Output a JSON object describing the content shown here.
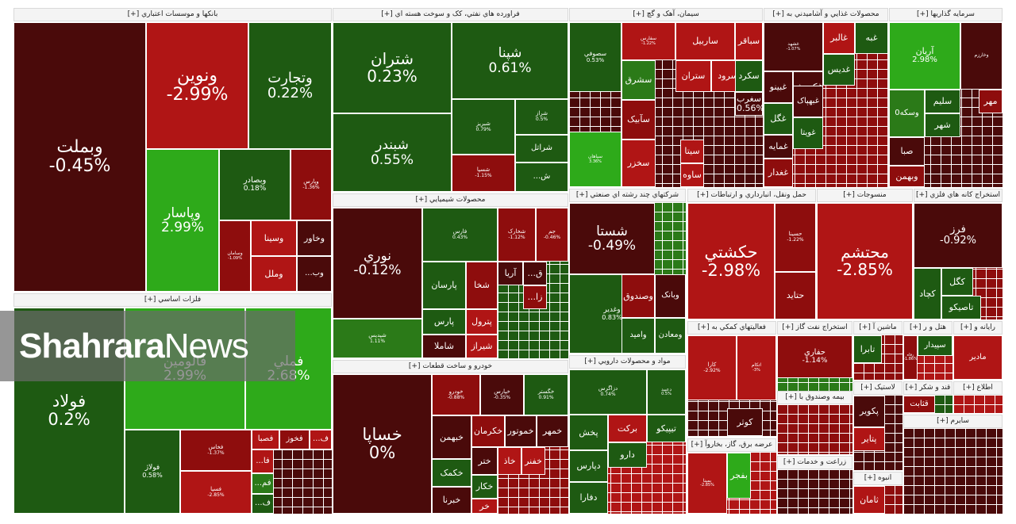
{
  "palette": {
    "dark": "#4a0a0a",
    "red": "#8e0d0d",
    "bright_red": "#b01515",
    "dark_green": "#1e5a12",
    "green": "#2b7a18",
    "bright_green": "#2eaa1a"
  },
  "watermark": {
    "bold": "Shahrara",
    "light": "News"
  },
  "sections": [
    {
      "header": "بانکها و موسسات اعتباري [+]",
      "tiles": [
        {
          "sym": "وبملت",
          "pct": "-0.45%",
          "c": "dark"
        },
        {
          "sym": "ونوين",
          "pct": "-2.99%",
          "c": "bright_red"
        },
        {
          "sym": "وتجارت",
          "pct": "0.22%",
          "c": "dark_green"
        },
        {
          "sym": "وپاسار",
          "pct": "2.99%",
          "c": "bright_green"
        },
        {
          "sym": "وبصادر",
          "pct": "0.18%",
          "c": "dark_green"
        },
        {
          "sym": "وپارس",
          "pct": "-1.36%",
          "c": "red"
        },
        {
          "sym": "وسينا",
          "c": "bright_red"
        },
        {
          "sym": "وملل",
          "c": "bright_red"
        },
        {
          "sym": "وخاور",
          "c": "dark"
        },
        {
          "sym": "وب...",
          "c": "dark"
        },
        {
          "sym": "وسامان",
          "pct": "-1.09%",
          "c": "red"
        }
      ]
    },
    {
      "header": "فلزات اساسي [+]",
      "tiles": [
        {
          "sym": "فولاد",
          "pct": "0.2%",
          "c": "dark_green"
        },
        {
          "sym": "فالومين",
          "pct": "2.99%",
          "c": "bright_green"
        },
        {
          "sym": "فملي",
          "pct": "2.68%",
          "c": "bright_green"
        },
        {
          "sym": "فولاژ",
          "pct": "0.58%",
          "c": "dark_green"
        },
        {
          "sym": "فخاس",
          "pct": "-1.37%",
          "c": "red"
        },
        {
          "sym": "فسپا",
          "pct": "-2.85%",
          "c": "bright_red"
        },
        {
          "sym": "فصبا",
          "c": "bright_red"
        },
        {
          "sym": "فخوز",
          "c": "red"
        },
        {
          "sym": "ف...",
          "c": "bright_red"
        },
        {
          "sym": "فا...",
          "c": "bright_red"
        },
        {
          "sym": "فم...",
          "c": "green"
        },
        {
          "sym": "ف...",
          "c": "dark_green"
        }
      ]
    },
    {
      "header": "فراورده هاي نفتي، کک و سوخت هسته اي [+]",
      "tiles": [
        {
          "sym": "شتران",
          "pct": "0.23%",
          "c": "dark_green"
        },
        {
          "sym": "شپنا",
          "pct": "0.61%",
          "c": "dark_green"
        },
        {
          "sym": "شبندر",
          "pct": "0.55%",
          "c": "dark_green"
        },
        {
          "sym": "شبريز",
          "pct": "0.79%",
          "c": "dark_green"
        },
        {
          "sym": "شراز",
          "pct": "0.5%",
          "c": "dark_green"
        },
        {
          "sym": "شراتل",
          "c": "dark_green"
        },
        {
          "sym": "شسپا",
          "pct": "-1.15%",
          "c": "red"
        },
        {
          "sym": "ش...",
          "c": "dark_green"
        }
      ]
    },
    {
      "header": "محصولات شيميايي [+]",
      "tiles": [
        {
          "sym": "نوري",
          "pct": "-0.12%",
          "c": "dark"
        },
        {
          "sym": "فارس",
          "pct": "0.43%",
          "c": "dark_green"
        },
        {
          "sym": "شخارک",
          "pct": "-1.12%",
          "c": "red"
        },
        {
          "sym": "پارسان",
          "c": "dark_green"
        },
        {
          "sym": "شخا",
          "c": "red"
        },
        {
          "sym": "آريا",
          "c": "dark"
        },
        {
          "sym": "شپديس",
          "pct": "1.11%",
          "c": "green"
        },
        {
          "sym": "پارس",
          "c": "dark_green"
        },
        {
          "sym": "پترول",
          "c": "bright_red"
        },
        {
          "sym": "شاملا",
          "c": "dark"
        },
        {
          "sym": "شيراز",
          "c": "bright_red"
        },
        {
          "sym": "جم",
          "pct": "-0.46%",
          "c": "red"
        },
        {
          "sym": "ق...",
          "c": "dark"
        },
        {
          "sym": "زا...",
          "c": "red"
        }
      ]
    },
    {
      "header": "خودرو و ساخت قطعات [+]",
      "tiles": [
        {
          "sym": "خساپا",
          "pct": "0%",
          "c": "dark"
        },
        {
          "sym": "خودرو",
          "pct": "-0.88%",
          "c": "red"
        },
        {
          "sym": "خپارس",
          "pct": "-0.35%",
          "c": "dark"
        },
        {
          "sym": "خگستر",
          "pct": "0.91%",
          "c": "dark_green"
        },
        {
          "sym": "خبهمن",
          "c": "dark"
        },
        {
          "sym": "خکرمان",
          "c": "red"
        },
        {
          "sym": "خموتور",
          "c": "dark"
        },
        {
          "sym": "خمهر",
          "c": "dark"
        },
        {
          "sym": "ختر",
          "c": "dark"
        },
        {
          "sym": "خاذ",
          "c": "bright_red"
        },
        {
          "sym": "خفنر",
          "c": "bright_red"
        },
        {
          "sym": "خکمک",
          "c": "dark_green"
        },
        {
          "sym": "خکار",
          "c": "dark_green"
        },
        {
          "sym": "خبرنا",
          "c": "dark"
        },
        {
          "sym": "خر",
          "c": "bright_red"
        }
      ]
    },
    {
      "header": "سيمان، آهک و گچ [+]",
      "tiles": [
        {
          "sym": "سصوفي",
          "pct": "0.53%",
          "c": "dark_green"
        },
        {
          "sym": "سفارس",
          "pct": "-1.22%",
          "c": "bright_red"
        },
        {
          "sym": "ساربيل",
          "c": "bright_red"
        },
        {
          "sym": "سباقر",
          "c": "bright_red"
        },
        {
          "sym": "سشرق",
          "c": "green"
        },
        {
          "sym": "ستران",
          "c": "bright_red"
        },
        {
          "sym": "سرود",
          "c": "bright_red"
        },
        {
          "sym": "سغرب",
          "pct": "-0.56%",
          "c": "dark"
        },
        {
          "sym": "سآبيک",
          "c": "red"
        },
        {
          "sym": "سپاهان",
          "pct": "3.36%",
          "c": "bright_green"
        },
        {
          "sym": "سخزر",
          "c": "bright_red"
        },
        {
          "sym": "سيتا",
          "c": "bright_red"
        },
        {
          "sym": "ساوه",
          "c": "bright_red"
        },
        {
          "sym": "سکرد",
          "c": "dark_green"
        }
      ]
    },
    {
      "header": "شرکتهاي چند رشته اي صنعتي [+]",
      "tiles": [
        {
          "sym": "شستا",
          "pct": "-0.49%",
          "c": "dark"
        },
        {
          "sym": "وغدير",
          "pct": "0.83%",
          "c": "dark_green"
        },
        {
          "sym": "وصندوق",
          "c": "red"
        },
        {
          "sym": "وبانک",
          "c": "dark"
        },
        {
          "sym": "واميد",
          "c": "dark_green"
        },
        {
          "sym": "ومعادن",
          "c": "dark_green"
        }
      ]
    },
    {
      "header": "مواد و محصولات دارويي [+]",
      "tiles": [
        {
          "sym": "دزاگرس",
          "pct": "0.74%",
          "c": "dark_green"
        },
        {
          "sym": "دعبيد",
          "pct": "0.5%",
          "c": "dark_green"
        },
        {
          "sym": "پخش",
          "c": "dark_green"
        },
        {
          "sym": "برکت",
          "c": "bright_red"
        },
        {
          "sym": "تيپيکو",
          "c": "dark_green"
        },
        {
          "sym": "دارو",
          "c": "dark_green"
        },
        {
          "sym": "دپارس",
          "c": "dark_green"
        },
        {
          "sym": "دفارا",
          "c": "dark_green"
        }
      ]
    },
    {
      "header": "محصولات غذايي و آشاميدني به [+]",
      "tiles": [
        {
          "sym": "غشهد",
          "pct": "-1.07%",
          "c": "dark"
        },
        {
          "sym": "غالبر",
          "c": "bright_red"
        },
        {
          "sym": "غبينو",
          "c": "dark"
        },
        {
          "sym": "غکورش",
          "c": "dark"
        },
        {
          "sym": "غديس",
          "c": "dark_green"
        },
        {
          "sym": "غگل",
          "c": "dark_green"
        },
        {
          "sym": "غبهپاک",
          "c": "dark"
        },
        {
          "sym": "غمايه",
          "c": "dark"
        },
        {
          "sym": "غغدار",
          "c": "red"
        },
        {
          "sym": "غويتا",
          "c": "dark_green"
        },
        {
          "sym": "غاذر",
          "c": "red"
        },
        {
          "sym": "غبه",
          "c": "dark_green"
        }
      ]
    },
    {
      "header": "سرمايه گذاريها [+]",
      "tiles": [
        {
          "sym": "آريان",
          "pct": "2.98%",
          "c": "bright_green"
        },
        {
          "sym": "وخارزم",
          "c": "dark"
        },
        {
          "sym": "وسکه0",
          "c": "green"
        },
        {
          "sym": "سليم",
          "c": "dark_green"
        },
        {
          "sym": "صبا",
          "c": "dark"
        },
        {
          "sym": "شهر",
          "c": "dark_green"
        },
        {
          "sym": "وبهمن",
          "c": "red"
        },
        {
          "sym": "مهر",
          "c": "red"
        }
      ]
    },
    {
      "header": "حمل ونقل، انبارداري و ارتباطات [+]",
      "tiles": [
        {
          "sym": "حکشتي",
          "pct": "-2.98%",
          "c": "bright_red"
        },
        {
          "sym": "حسينا",
          "pct": "-1.22%",
          "c": "red"
        },
        {
          "sym": "حتايد",
          "c": "red"
        }
      ]
    },
    {
      "header": "منسوجات [+]",
      "tiles": [
        {
          "sym": "محتشم",
          "pct": "-2.85%",
          "c": "bright_red"
        }
      ]
    },
    {
      "header": "استخراج کانه هاي فلزي [+]",
      "tiles": [
        {
          "sym": "فرز",
          "pct": "-0.92%",
          "c": "dark"
        },
        {
          "sym": "کگل",
          "c": "dark_green"
        },
        {
          "sym": "کچاد",
          "c": "dark_green"
        },
        {
          "sym": "تاصيکو",
          "c": "dark_green"
        }
      ]
    },
    {
      "header": "فعاليتهاي کمکي به [+]",
      "tiles": [
        {
          "sym": "کارا",
          "pct": "-2.92%",
          "c": "bright_red"
        },
        {
          "sym": "اتکام",
          "pct": "-3%",
          "c": "bright_red"
        },
        {
          "sym": "کوثر",
          "c": "dark"
        }
      ]
    },
    {
      "header": "استخراج نفت گاز [+]",
      "tiles": [
        {
          "sym": "حفاري",
          "pct": "-1.14%",
          "c": "red"
        }
      ]
    },
    {
      "header": "عرضه برق، گاز، بخاروآ [+]",
      "tiles": [
        {
          "sym": "بمپنا",
          "pct": "-2.85%",
          "c": "bright_red"
        },
        {
          "sym": "بفجر",
          "c": "bright_green"
        }
      ]
    },
    {
      "header": "ماشين آ [+]",
      "tiles": [
        {
          "sym": "تابرا",
          "c": "dark_green"
        }
      ]
    },
    {
      "header": "لاستيک [+]",
      "tiles": [
        {
          "sym": "پکوير",
          "c": "dark"
        },
        {
          "sym": "پتاير",
          "c": "bright_red"
        }
      ]
    },
    {
      "header": "هتل و ر [+]",
      "tiles": [
        {
          "sym": "سپيدار",
          "c": "dark_green"
        },
        {
          "sym": "رفاه",
          "pct": "-1.86%",
          "c": "red"
        }
      ]
    },
    {
      "header": "قند و شکر [+]",
      "tiles": [
        {
          "sym": "قثابت",
          "c": "red"
        }
      ]
    },
    {
      "header": "انبوه [+]",
      "tiles": [
        {
          "sym": "ثامان",
          "c": "bright_red"
        }
      ]
    },
    {
      "header": "زراعت و خدمات [+]",
      "tiles": []
    },
    {
      "header": "رايانه و [+]",
      "tiles": [
        {
          "sym": "مادير",
          "c": "bright_red"
        }
      ]
    },
    {
      "header": "اطلاع [+]",
      "tiles": []
    },
    {
      "header": "بيمه وصندوق با [+]",
      "tiles": []
    },
    {
      "header": "سايرم [+]",
      "tiles": []
    }
  ]
}
